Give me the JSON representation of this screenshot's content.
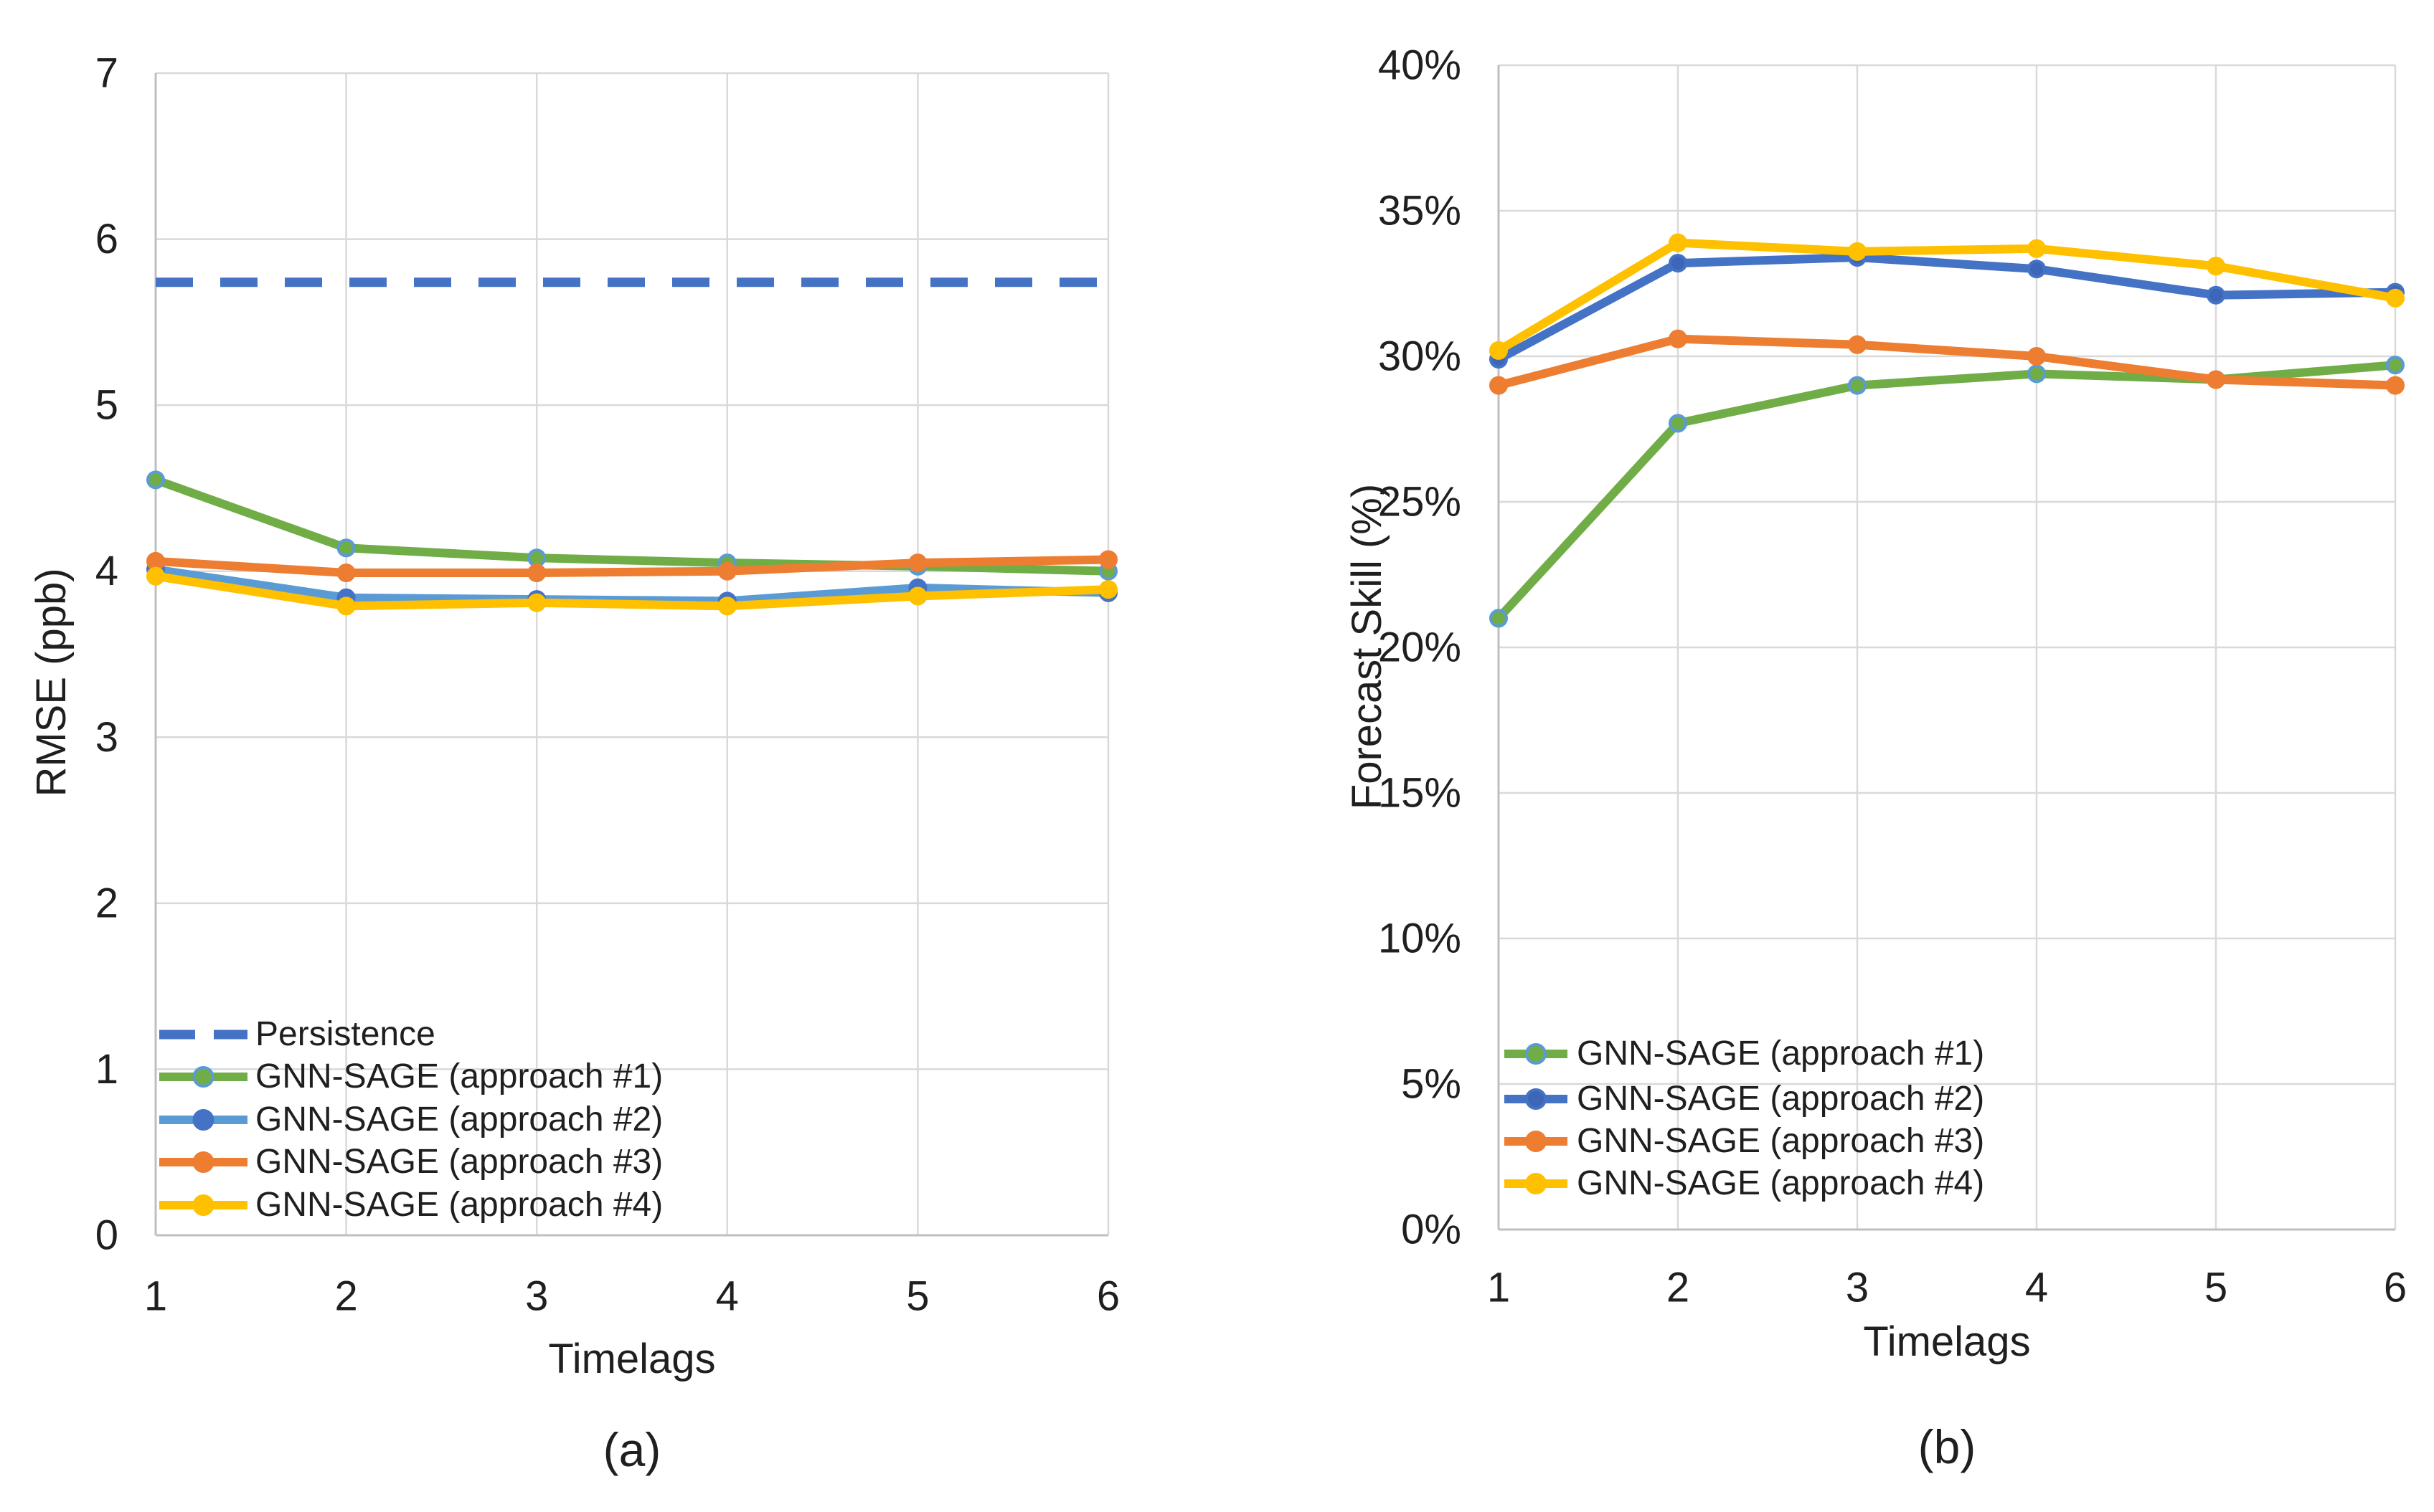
{
  "figure": {
    "captions": {
      "a": "(a)",
      "b": "(b)"
    }
  },
  "colors": {
    "persistence_blue": "#4472C4",
    "approach1_green": "#70AD47",
    "approach2_light_blue": "#5B9BD5",
    "approach2_blue": "#4472C4",
    "approach3_orange": "#ED7D31",
    "approach4_yellow": "#FFC000",
    "gridline_gray": "#D9D9D9",
    "axis_line_gray": "#BFBFBF",
    "text_dark": "#1f1f1f"
  },
  "chart_data": [
    {
      "id": "a",
      "type": "line",
      "title": "",
      "xlabel": "Timelags",
      "ylabel": "RMSE (ppb)",
      "caption": "(a)",
      "x": [
        1,
        2,
        3,
        4,
        5,
        6
      ],
      "xtick_labels": [
        "1",
        "2",
        "3",
        "4",
        "5",
        "6"
      ],
      "ylim": [
        0,
        7
      ],
      "ytick_values": [
        0,
        1,
        2,
        3,
        4,
        5,
        6,
        7
      ],
      "ytick_labels": [
        "0",
        "1",
        "2",
        "3",
        "4",
        "5",
        "6",
        "7"
      ],
      "grid": true,
      "legend_position": "lower-left",
      "series": [
        {
          "name": "Persistence",
          "style": "dashed",
          "color": "#4472C4",
          "values": [
            5.74,
            5.74,
            5.74,
            5.74,
            5.74,
            5.74
          ]
        },
        {
          "name": "GNN-SAGE (approach #1)",
          "style": "line-marker",
          "color": "#70AD47",
          "marker_fill": "#70AD47",
          "marker_stroke": "#5B9BD5",
          "values": [
            4.55,
            4.14,
            4.08,
            4.05,
            4.03,
            4.0
          ]
        },
        {
          "name": "GNN-SAGE (approach #2)",
          "style": "line-marker",
          "color": "#5B9BD5",
          "marker_fill": "#4472C4",
          "marker_stroke": "#4472C4",
          "values": [
            4.01,
            3.84,
            3.83,
            3.82,
            3.9,
            3.87
          ]
        },
        {
          "name": "GNN-SAGE (approach #3)",
          "style": "line-marker",
          "color": "#ED7D31",
          "marker_fill": "#ED7D31",
          "marker_stroke": "#ED7D31",
          "values": [
            4.06,
            3.99,
            3.99,
            4.0,
            4.05,
            4.07
          ]
        },
        {
          "name": "GNN-SAGE (approach #4)",
          "style": "line-marker",
          "color": "#FFC000",
          "marker_fill": "#FFC000",
          "marker_stroke": "#FFC000",
          "values": [
            3.97,
            3.79,
            3.81,
            3.79,
            3.85,
            3.89
          ]
        }
      ]
    },
    {
      "id": "b",
      "type": "line",
      "title": "",
      "xlabel": "Timelags",
      "ylabel": "Forecast Skill (%)",
      "caption": "(b)",
      "x": [
        1,
        2,
        3,
        4,
        5,
        6
      ],
      "xtick_labels": [
        "1",
        "2",
        "3",
        "4",
        "5",
        "6"
      ],
      "ylim": [
        0,
        40
      ],
      "ytick_values": [
        0,
        5,
        10,
        15,
        20,
        25,
        30,
        35,
        40
      ],
      "ytick_labels": [
        "0%",
        "5%",
        "10%",
        "15%",
        "20%",
        "25%",
        "30%",
        "35%",
        "40%"
      ],
      "grid": true,
      "legend_position": "lower-left",
      "series": [
        {
          "name": "GNN-SAGE (approach #1)",
          "style": "line-marker",
          "color": "#70AD47",
          "marker_fill": "#70AD47",
          "marker_stroke": "#5B9BD5",
          "values": [
            21.0,
            27.7,
            29.0,
            29.4,
            29.2,
            29.7
          ]
        },
        {
          "name": "GNN-SAGE (approach #2)",
          "style": "line-marker",
          "color": "#4472C4",
          "marker_fill": "#3E66B8",
          "marker_stroke": "#4472C4",
          "values": [
            29.9,
            33.2,
            33.4,
            33.0,
            32.1,
            32.2
          ]
        },
        {
          "name": "GNN-SAGE (approach #3)",
          "style": "line-marker",
          "color": "#ED7D31",
          "marker_fill": "#ED7D31",
          "marker_stroke": "#ED7D31",
          "values": [
            29.0,
            30.6,
            30.4,
            30.0,
            29.2,
            29.0
          ]
        },
        {
          "name": "GNN-SAGE (approach #4)",
          "style": "line-marker",
          "color": "#FFC000",
          "marker_fill": "#FFC000",
          "marker_stroke": "#FFC000",
          "values": [
            30.2,
            33.9,
            33.6,
            33.7,
            33.1,
            32.0
          ]
        }
      ]
    }
  ]
}
